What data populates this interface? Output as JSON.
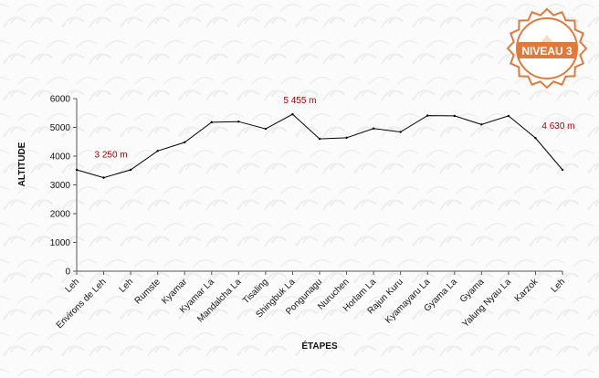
{
  "badge": {
    "text": "NIVEAU 3",
    "color": "#e07a3c"
  },
  "chart_data": {
    "type": "line",
    "categories": [
      "Leh",
      "Environs de Leh",
      "Leh",
      "Rumste",
      "Kyamar",
      "Kyamar La",
      "Mandalcha La",
      "Tisaling",
      "Shingbuk La",
      "Pongunagu",
      "Nuruchen",
      "Horlam La",
      "Rajun Kuru",
      "Kyamayaru La",
      "Gyama La",
      "Gyama",
      "Yalung Nyau La",
      "Karzok",
      "Leh"
    ],
    "series": [
      {
        "values": [
          3524,
          3250,
          3524,
          4180,
          4480,
          5180,
          5200,
          4950,
          5455,
          4600,
          4640,
          4960,
          4840,
          5410,
          5400,
          5100,
          5400,
          4630,
          3524
        ]
      }
    ],
    "xlabel": "ÉTAPES",
    "ylabel": "ALTITUDE",
    "ylim": [
      0,
      6000
    ],
    "yticks": [
      0,
      1000,
      2000,
      3000,
      4000,
      5000,
      6000
    ],
    "grid": false,
    "line_color": "#000000",
    "annotations": [
      {
        "index": 1,
        "text": "3 250 m"
      },
      {
        "index": 8,
        "text": "5 455 m"
      },
      {
        "index": 17,
        "text": "4 630 m"
      }
    ],
    "annotation_color": "#b00000"
  }
}
